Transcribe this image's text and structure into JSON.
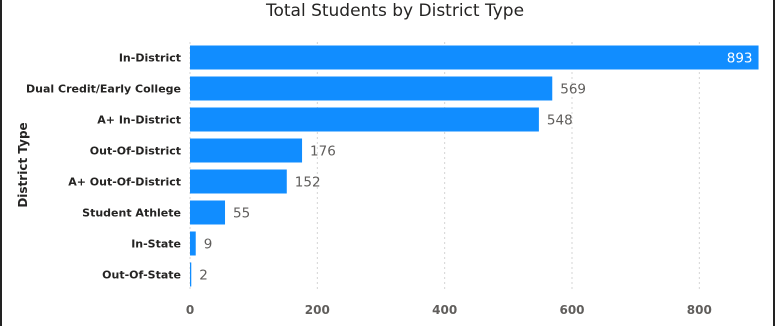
{
  "chart_data": {
    "type": "bar",
    "orientation": "horizontal",
    "title": "Total Students by District Type",
    "ylabel": "District Type",
    "xlabel": "",
    "categories": [
      "In-District",
      "Dual Credit/Early College",
      "A+ In-District",
      "Out-Of-District",
      "A+ Out-Of-District",
      "Student Athlete",
      "In-State",
      "Out-Of-State"
    ],
    "values": [
      893,
      569,
      548,
      176,
      152,
      55,
      9,
      2
    ],
    "xlim": [
      0,
      900
    ],
    "xticks": [
      0,
      200,
      400,
      600,
      800
    ],
    "grid": true,
    "bar_color": "#118DFF"
  }
}
